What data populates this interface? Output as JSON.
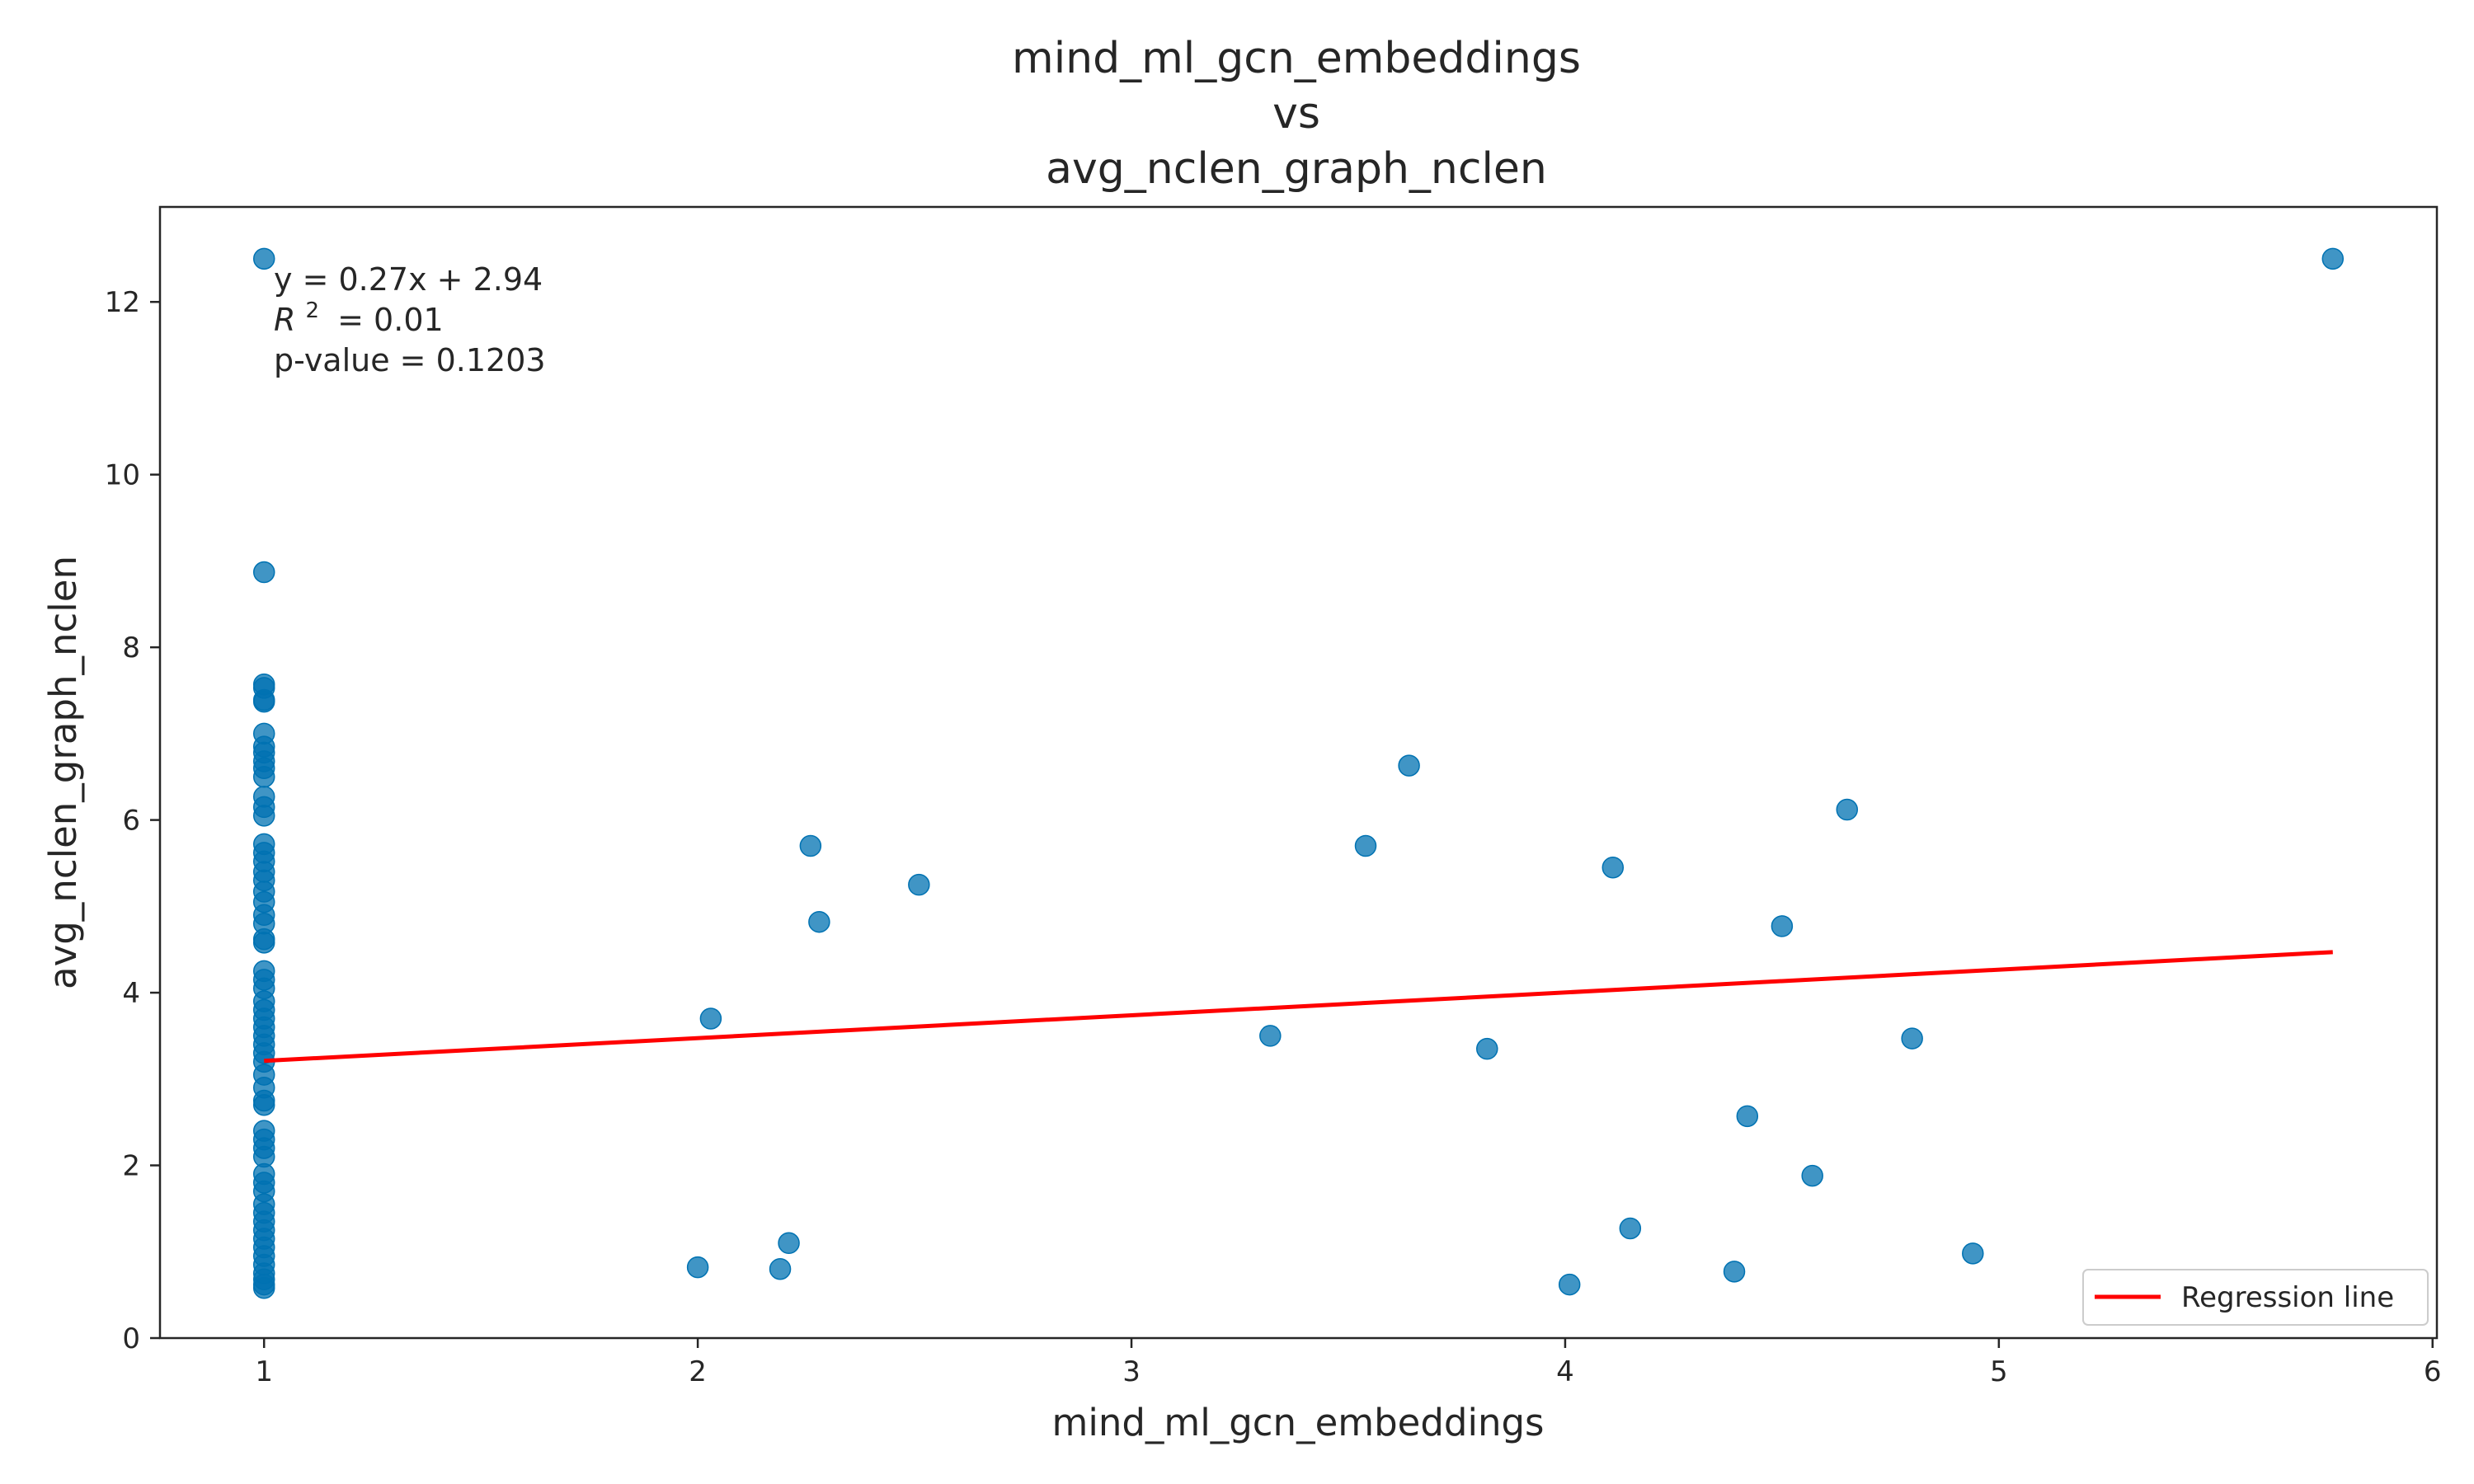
{
  "chart_data": {
    "type": "scatter",
    "title_lines": [
      "mind_ml_gcn_embeddings",
      "vs",
      "avg_nclen_graph_nclen"
    ],
    "xlabel": "mind_ml_gcn_embeddings",
    "ylabel": "avg_nclen_graph_nclen",
    "xlim": [
      0.76,
      6.01
    ],
    "ylim": [
      0,
      13.1
    ],
    "xticks": [
      1,
      2,
      3,
      4,
      5,
      6
    ],
    "yticks": [
      0,
      2,
      4,
      6,
      8,
      10,
      12
    ],
    "grid": false,
    "point_color": "#0072b2",
    "regression_color": "#ff0000",
    "points": [
      {
        "x": 1,
        "y": 12.5
      },
      {
        "x": 1,
        "y": 8.87
      },
      {
        "x": 1,
        "y": 7.57
      },
      {
        "x": 1,
        "y": 7.53
      },
      {
        "x": 1,
        "y": 7.39
      },
      {
        "x": 1,
        "y": 7.37
      },
      {
        "x": 1,
        "y": 7.0
      },
      {
        "x": 1,
        "y": 6.85
      },
      {
        "x": 1,
        "y": 6.78
      },
      {
        "x": 1,
        "y": 6.68
      },
      {
        "x": 1,
        "y": 6.6
      },
      {
        "x": 1,
        "y": 6.5
      },
      {
        "x": 1,
        "y": 6.27
      },
      {
        "x": 1,
        "y": 6.15
      },
      {
        "x": 1,
        "y": 6.05
      },
      {
        "x": 1,
        "y": 5.72
      },
      {
        "x": 1,
        "y": 5.62
      },
      {
        "x": 1,
        "y": 5.52
      },
      {
        "x": 1,
        "y": 5.4
      },
      {
        "x": 1,
        "y": 5.3
      },
      {
        "x": 1,
        "y": 5.17
      },
      {
        "x": 1,
        "y": 5.05
      },
      {
        "x": 1,
        "y": 4.9
      },
      {
        "x": 1,
        "y": 4.8
      },
      {
        "x": 1,
        "y": 4.62
      },
      {
        "x": 1,
        "y": 4.58
      },
      {
        "x": 1,
        "y": 4.25
      },
      {
        "x": 1,
        "y": 4.15
      },
      {
        "x": 1,
        "y": 4.05
      },
      {
        "x": 1,
        "y": 3.9
      },
      {
        "x": 1,
        "y": 3.8
      },
      {
        "x": 1,
        "y": 3.7
      },
      {
        "x": 1,
        "y": 3.6
      },
      {
        "x": 1,
        "y": 3.5
      },
      {
        "x": 1,
        "y": 3.4
      },
      {
        "x": 1,
        "y": 3.3
      },
      {
        "x": 1,
        "y": 3.2
      },
      {
        "x": 1,
        "y": 3.05
      },
      {
        "x": 1,
        "y": 2.9
      },
      {
        "x": 1,
        "y": 2.75
      },
      {
        "x": 1,
        "y": 2.7
      },
      {
        "x": 1,
        "y": 2.4
      },
      {
        "x": 1,
        "y": 2.3
      },
      {
        "x": 1,
        "y": 2.2
      },
      {
        "x": 1,
        "y": 2.1
      },
      {
        "x": 1,
        "y": 1.9
      },
      {
        "x": 1,
        "y": 1.8
      },
      {
        "x": 1,
        "y": 1.7
      },
      {
        "x": 1,
        "y": 1.55
      },
      {
        "x": 1,
        "y": 1.45
      },
      {
        "x": 1,
        "y": 1.35
      },
      {
        "x": 1,
        "y": 1.25
      },
      {
        "x": 1,
        "y": 1.15
      },
      {
        "x": 1,
        "y": 1.05
      },
      {
        "x": 1,
        "y": 0.95
      },
      {
        "x": 1,
        "y": 0.85
      },
      {
        "x": 1,
        "y": 0.75
      },
      {
        "x": 1,
        "y": 0.68
      },
      {
        "x": 1,
        "y": 0.62
      },
      {
        "x": 1,
        "y": 0.58
      },
      {
        "x": 2.0,
        "y": 0.82
      },
      {
        "x": 2.03,
        "y": 3.7
      },
      {
        "x": 2.19,
        "y": 0.8
      },
      {
        "x": 2.21,
        "y": 1.1
      },
      {
        "x": 2.26,
        "y": 5.7
      },
      {
        "x": 2.28,
        "y": 4.82
      },
      {
        "x": 2.51,
        "y": 5.25
      },
      {
        "x": 3.32,
        "y": 3.5
      },
      {
        "x": 3.54,
        "y": 5.7
      },
      {
        "x": 3.64,
        "y": 6.63
      },
      {
        "x": 3.82,
        "y": 3.35
      },
      {
        "x": 4.01,
        "y": 0.62
      },
      {
        "x": 4.11,
        "y": 5.45
      },
      {
        "x": 4.15,
        "y": 1.27
      },
      {
        "x": 4.39,
        "y": 0.77
      },
      {
        "x": 4.42,
        "y": 2.57
      },
      {
        "x": 4.5,
        "y": 4.77
      },
      {
        "x": 4.57,
        "y": 1.88
      },
      {
        "x": 4.65,
        "y": 6.12
      },
      {
        "x": 4.8,
        "y": 3.47
      },
      {
        "x": 4.94,
        "y": 0.98
      },
      {
        "x": 5.77,
        "y": 12.5
      }
    ],
    "regression": {
      "x": [
        1,
        5.77
      ],
      "y": [
        3.21,
        4.47
      ]
    },
    "annotation_lines": [
      "y = 0.27x + 2.94",
      "= 0.01",
      "p-value = 0.1203"
    ],
    "annotation_r2_symbol": "R",
    "annotation_r2_superscript": "2",
    "legend": {
      "label": "Regression line",
      "position": "lower right"
    }
  }
}
